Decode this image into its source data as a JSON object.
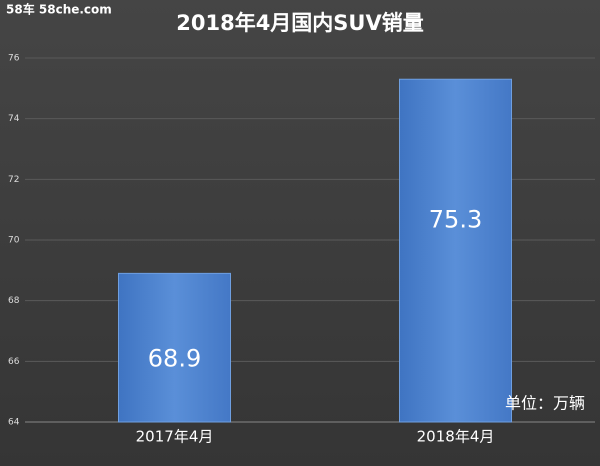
{
  "chart_data": {
    "type": "bar",
    "title": "2018年4月国内SUV销量",
    "watermark": "58车  58che.com",
    "unit_label": "单位：万辆",
    "categories": [
      "2017年4月",
      "2018年4月"
    ],
    "values": [
      68.9,
      75.3
    ],
    "color": "#4f86d0",
    "ylim": [
      64,
      76
    ],
    "yticks": [
      64,
      66,
      68,
      70,
      72,
      74,
      76
    ],
    "grid": true
  }
}
